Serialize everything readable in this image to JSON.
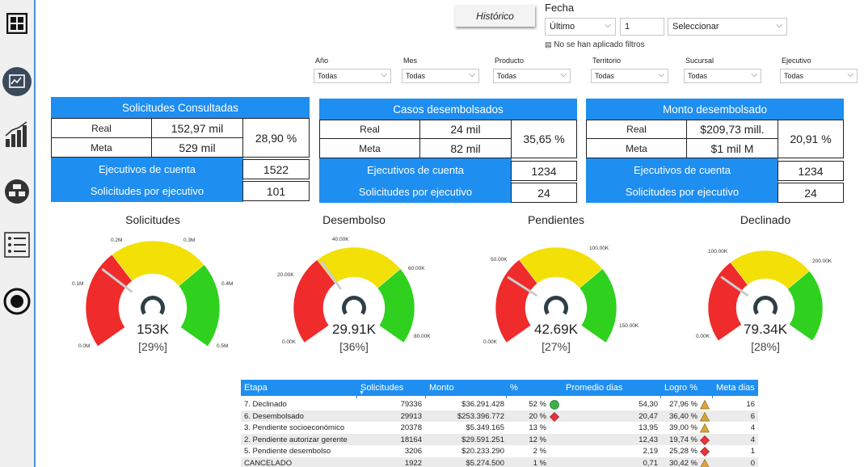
{
  "sidebar": {
    "icons": [
      "grid-icon",
      "analytics-icon",
      "bar-chart-icon",
      "hierarchy-icon",
      "list-icon",
      "record-icon"
    ]
  },
  "historico_label": "Histórico",
  "fecha": {
    "label": "Fecha",
    "period": "Último",
    "count": "1",
    "unit": "Seleccionar",
    "no_filters": "No se han aplicado filtros"
  },
  "filters": [
    {
      "label": "Año",
      "value": "Todas"
    },
    {
      "label": "Mes",
      "value": "Todas"
    },
    {
      "label": "Producto",
      "value": "Todas"
    },
    {
      "label": "Territorio",
      "value": "Todas"
    },
    {
      "label": "Sucursal",
      "value": "Todas"
    },
    {
      "label": "Ejecutivo",
      "value": "Todas"
    }
  ],
  "cards": [
    {
      "title": "Solicitudes Consultadas",
      "real_label": "Real",
      "real": "152,97 mil",
      "meta_label": "Meta",
      "meta": "529 mil",
      "pct": "28,90 %",
      "ejec_label": "Ejecutivos de cuenta",
      "ejec": "1522",
      "sol_label": "Solicitudes por ejecutivo",
      "sol": "101"
    },
    {
      "title": "Casos desembolsados",
      "real_label": "Real",
      "real": "24 mil",
      "meta_label": "Meta",
      "meta": "82 mil",
      "pct": "35,65 %",
      "ejec_label": "Ejecutivos de cuenta",
      "ejec": "1234",
      "sol_label": "Solicitudes por ejecutivo",
      "sol": "24"
    },
    {
      "title": "Monto desembolsado",
      "real_label": "Real",
      "real": "$209,73 mill.",
      "meta_label": "Meta",
      "meta": "$1 mil M",
      "pct": "20,91 %",
      "ejec_label": "Ejecutivos de cuenta",
      "ejec": "1234",
      "sol_label": "Solicitudes por ejecutivo",
      "sol": "24"
    }
  ],
  "gauges": [
    {
      "title": "Solicitudes",
      "value": "153K",
      "pct": "[29%]",
      "ticks": [
        "0.0M",
        "0.1M",
        "0.2M",
        "0.3M",
        "0.4M",
        "0.5M"
      ],
      "needle_fraction": 0.29
    },
    {
      "title": "Desembolso",
      "value": "29.91K",
      "pct": "[36%]",
      "ticks": [
        "0.00K",
        "20.00K",
        "40.00K",
        "60.00K",
        "80.00K"
      ],
      "needle_fraction": 0.36
    },
    {
      "title": "Pendientes",
      "value": "42.69K",
      "pct": "[27%]",
      "ticks": [
        "0.00K",
        "50.00K",
        "100.00K",
        "150.00K"
      ],
      "needle_fraction": 0.27
    },
    {
      "title": "Declinado",
      "value": "79.34K",
      "pct": "[28%]",
      "ticks": [
        "0.00K",
        "100.00K",
        "200.00K"
      ],
      "needle_fraction": 0.28
    }
  ],
  "table": {
    "headers": [
      "Etapa",
      "Solicitudes",
      "Monto",
      "%",
      "Promedio dias",
      "Logro %",
      "Meta dias"
    ],
    "rows": [
      {
        "etapa": "7. Declinado",
        "sol": "79336",
        "monto": "$36.291.428",
        "pct": "52 %",
        "pind": "circle-green",
        "prom": "54,30",
        "logro": "27,96 %",
        "lind": "triangle-yellow",
        "meta": "16"
      },
      {
        "etapa": "6. Desembolsado",
        "sol": "29913",
        "monto": "$253.396.772",
        "pct": "20 %",
        "pind": "diamond-red",
        "prom": "20,47",
        "logro": "36,40 %",
        "lind": "triangle-yellow",
        "meta": "6"
      },
      {
        "etapa": "3. Pendiente socioeconómico",
        "sol": "20378",
        "monto": "$5.349.165",
        "pct": "13 %",
        "pind": "",
        "prom": "13,95",
        "logro": "39,00 %",
        "lind": "triangle-yellow",
        "meta": "4"
      },
      {
        "etapa": "2. Pendiente autorizar gerente",
        "sol": "18164",
        "monto": "$29.591.251",
        "pct": "12 %",
        "pind": "",
        "prom": "12,43",
        "logro": "19,74 %",
        "lind": "diamond-red",
        "meta": "4"
      },
      {
        "etapa": "5. Pendiente desembolso",
        "sol": "3206",
        "monto": "$20.233.290",
        "pct": "2 %",
        "pind": "",
        "prom": "2,19",
        "logro": "25,28 %",
        "lind": "diamond-red",
        "meta": "1"
      },
      {
        "etapa": "CANCELADO",
        "sol": "1922",
        "monto": "$5.274.500",
        "pct": "1 %",
        "pind": "",
        "prom": "0,71",
        "logro": "30,42 %",
        "lind": "triangle-yellow",
        "meta": "0"
      }
    ]
  },
  "colors": {
    "accent": "#1e8ef0",
    "gauge_red": "#ef2b2b",
    "gauge_yellow": "#f3e007",
    "gauge_green": "#2fd11e"
  }
}
